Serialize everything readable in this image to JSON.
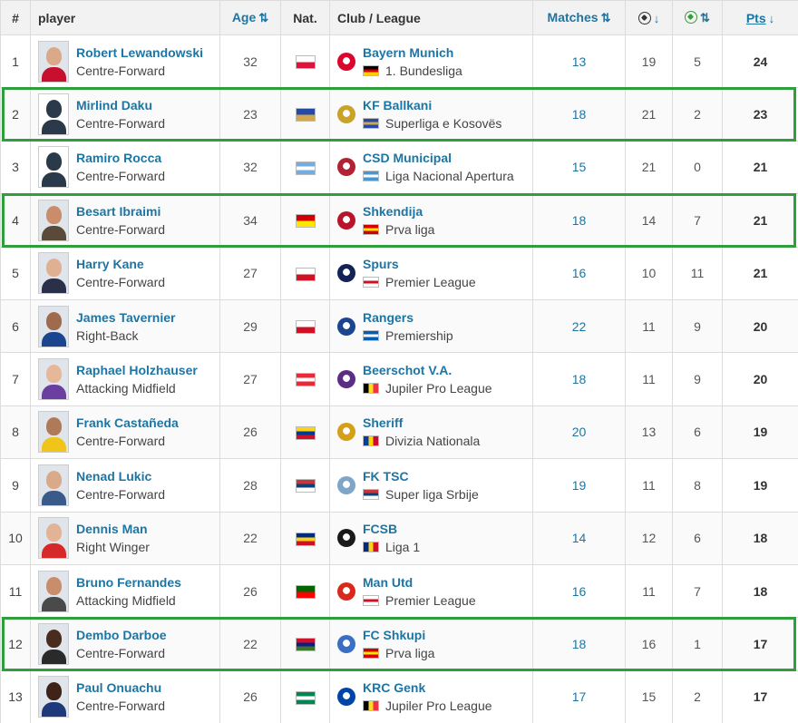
{
  "header": {
    "rank": "#",
    "player": "player",
    "age": "Age",
    "nat": "Nat.",
    "club_league": "Club / League",
    "matches": "Matches",
    "pts": "Pts",
    "age_sort_icon": "sort-arrows-icon",
    "goals_icon": "football-icon",
    "assists_icon": "football-assist-icon"
  },
  "highlight_color": "#2f9e3c",
  "rows": [
    {
      "rank": "1",
      "name": "Robert Lewandowski",
      "position": "Centre-Forward",
      "age": "32",
      "nat_colors": [
        "#ffffff",
        "#dc143c"
      ],
      "club": "Bayern Munich",
      "league": "1. Bundesliga",
      "league_colors": [
        "#000000",
        "#dd0000",
        "#ffce00"
      ],
      "crest_color": "#dc052d",
      "matches": "13",
      "goals": "19",
      "assists": "5",
      "pts": "24",
      "avatar": "photo",
      "skin": "#d9a98a",
      "shirt": "#c8102e"
    },
    {
      "rank": "2",
      "name": "Mirlind Daku",
      "position": "Centre-Forward",
      "age": "23",
      "nat_colors": [
        "#244aa5",
        "#d0a650"
      ],
      "club": "KF Ballkani",
      "league": "Superliga e Kosovës",
      "league_colors": [
        "#244aa5",
        "#d0a650",
        "#244aa5"
      ],
      "crest_color": "#c9a227",
      "matches": "18",
      "goals": "21",
      "assists": "2",
      "pts": "23",
      "avatar": "blank",
      "highlight": true
    },
    {
      "rank": "3",
      "name": "Ramiro Rocca",
      "position": "Centre-Forward",
      "age": "32",
      "nat_colors": [
        "#74acdf",
        "#ffffff",
        "#74acdf"
      ],
      "club": "CSD Municipal",
      "league": "Liga Nacional Apertura",
      "league_colors": [
        "#4997d0",
        "#ffffff",
        "#4997d0"
      ],
      "crest_color": "#b22234",
      "matches": "15",
      "goals": "21",
      "assists": "0",
      "pts": "21",
      "avatar": "blank"
    },
    {
      "rank": "4",
      "name": "Besart Ibraimi",
      "position": "Centre-Forward",
      "age": "34",
      "nat_colors": [
        "#d20000",
        "#ffe600"
      ],
      "club": "Shkendija",
      "league": "Prva liga",
      "league_colors": [
        "#d20000",
        "#ffe600",
        "#d20000"
      ],
      "crest_color": "#b8142a",
      "matches": "18",
      "goals": "14",
      "assists": "7",
      "pts": "21",
      "avatar": "photo",
      "skin": "#c98d6c",
      "shirt": "#5a4a3a",
      "highlight": true
    },
    {
      "rank": "5",
      "name": "Harry Kane",
      "position": "Centre-Forward",
      "age": "27",
      "nat_colors": [
        "#ffffff",
        "#ce1124"
      ],
      "club": "Spurs",
      "league": "Premier League",
      "league_colors": [
        "#ffffff",
        "#ce1124",
        "#ffffff"
      ],
      "crest_color": "#132257",
      "matches": "16",
      "goals": "10",
      "assists": "11",
      "pts": "21",
      "avatar": "photo",
      "skin": "#e0b093",
      "shirt": "#2a2f4a"
    },
    {
      "rank": "6",
      "name": "James Tavernier",
      "position": "Right-Back",
      "age": "29",
      "nat_colors": [
        "#ffffff",
        "#ce1124"
      ],
      "club": "Rangers",
      "league": "Premiership",
      "league_colors": [
        "#005eb8",
        "#ffffff",
        "#005eb8"
      ],
      "crest_color": "#1b458f",
      "matches": "22",
      "goals": "11",
      "assists": "9",
      "pts": "20",
      "avatar": "photo",
      "skin": "#a06a4e",
      "shirt": "#1b458f"
    },
    {
      "rank": "7",
      "name": "Raphael Holzhauser",
      "position": "Attacking Midfield",
      "age": "27",
      "nat_colors": [
        "#ed2939",
        "#ffffff",
        "#ed2939"
      ],
      "club": "Beerschot V.A.",
      "league": "Jupiler Pro League",
      "league_colors": [
        "#000000",
        "#fdda24",
        "#ef3340"
      ],
      "crest_color": "#5b2d86",
      "matches": "18",
      "goals": "11",
      "assists": "9",
      "pts": "20",
      "avatar": "photo",
      "skin": "#e6b899",
      "shirt": "#6b3fa0"
    },
    {
      "rank": "8",
      "name": "Frank Castañeda",
      "position": "Centre-Forward",
      "age": "26",
      "nat_colors": [
        "#fcd116",
        "#003893",
        "#ce1126"
      ],
      "club": "Sheriff",
      "league": "Divizia Nationala",
      "league_colors": [
        "#003da5",
        "#ffd200",
        "#cc092f"
      ],
      "crest_color": "#d4a017",
      "matches": "20",
      "goals": "13",
      "assists": "6",
      "pts": "19",
      "avatar": "photo",
      "skin": "#b07a58",
      "shirt": "#f0c419"
    },
    {
      "rank": "9",
      "name": "Nenad Lukic",
      "position": "Centre-Forward",
      "age": "28",
      "nat_colors": [
        "#c6363c",
        "#0c4076",
        "#ffffff"
      ],
      "club": "FK TSC",
      "league": "Super liga Srbije",
      "league_colors": [
        "#c6363c",
        "#0c4076",
        "#ffffff"
      ],
      "crest_color": "#7fa6c9",
      "matches": "19",
      "goals": "11",
      "assists": "8",
      "pts": "19",
      "avatar": "photo",
      "skin": "#d9a98a",
      "shirt": "#3a5a8a"
    },
    {
      "rank": "10",
      "name": "Dennis Man",
      "position": "Right Winger",
      "age": "22",
      "nat_colors": [
        "#002b7f",
        "#fcd116",
        "#ce1126"
      ],
      "club": "FCSB",
      "league": "Liga 1",
      "league_colors": [
        "#002b7f",
        "#fcd116",
        "#ce1126"
      ],
      "crest_color": "#1a1a1a",
      "matches": "14",
      "goals": "12",
      "assists": "6",
      "pts": "18",
      "avatar": "photo",
      "skin": "#e3b396",
      "shirt": "#d62828"
    },
    {
      "rank": "11",
      "name": "Bruno Fernandes",
      "position": "Attacking Midfield",
      "age": "26",
      "nat_colors": [
        "#006600",
        "#ff0000"
      ],
      "club": "Man Utd",
      "league": "Premier League",
      "league_colors": [
        "#ffffff",
        "#ce1124",
        "#ffffff"
      ],
      "crest_color": "#da291c",
      "matches": "16",
      "goals": "11",
      "assists": "7",
      "pts": "18",
      "avatar": "photo",
      "skin": "#c98d6c",
      "shirt": "#4a4a4a"
    },
    {
      "rank": "12",
      "name": "Dembo Darboe",
      "position": "Centre-Forward",
      "age": "22",
      "nat_colors": [
        "#ce1126",
        "#0c1c8c",
        "#3a7728"
      ],
      "club": "FC Shkupi",
      "league": "Prva liga",
      "league_colors": [
        "#d20000",
        "#ffe600",
        "#d20000"
      ],
      "crest_color": "#3b6fc4",
      "matches": "18",
      "goals": "16",
      "assists": "1",
      "pts": "17",
      "avatar": "photo",
      "skin": "#4a2c1e",
      "shirt": "#2a2a2a",
      "highlight": true
    },
    {
      "rank": "13",
      "name": "Paul Onuachu",
      "position": "Centre-Forward",
      "age": "26",
      "nat_colors": [
        "#008751",
        "#ffffff",
        "#008751"
      ],
      "club": "KRC Genk",
      "league": "Jupiler Pro League",
      "league_colors": [
        "#000000",
        "#fdda24",
        "#ef3340"
      ],
      "crest_color": "#0046a8",
      "matches": "17",
      "goals": "15",
      "assists": "2",
      "pts": "17",
      "avatar": "photo",
      "skin": "#3e2418",
      "shirt": "#1f3a7a"
    }
  ]
}
